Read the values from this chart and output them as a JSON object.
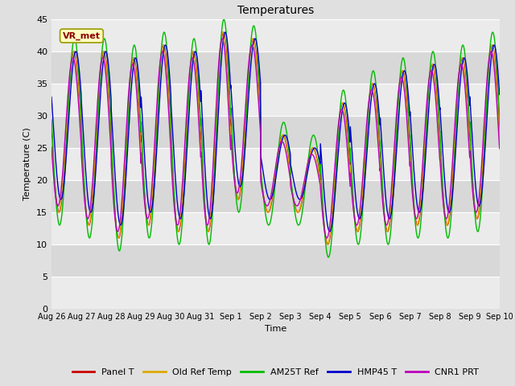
{
  "title": "Temperatures",
  "xlabel": "Time",
  "ylabel": "Temperature (C)",
  "ylim": [
    0,
    45
  ],
  "yticks": [
    0,
    5,
    10,
    15,
    20,
    25,
    30,
    35,
    40,
    45
  ],
  "annotation_text": "VR_met",
  "legend_entries": [
    "Panel T",
    "Old Ref Temp",
    "AM25T Ref",
    "HMP45 T",
    "CNR1 PRT"
  ],
  "line_colors": [
    "#cc0000",
    "#ddaa00",
    "#00bb00",
    "#0000cc",
    "#bb00bb"
  ],
  "bg_color": "#e0e0e0",
  "plot_bg_light": "#ebebeb",
  "plot_bg_dark": "#d8d8d8",
  "num_days": 15,
  "num_points": 3000,
  "day_peaks": [
    40,
    40,
    39,
    41,
    40,
    43,
    42,
    27,
    25,
    32,
    35,
    37,
    38,
    39,
    41
  ],
  "day_mins": [
    15,
    13,
    11,
    13,
    12,
    12,
    17,
    15,
    15,
    10,
    12,
    12,
    13,
    13,
    14
  ],
  "green_peak_extra": 2,
  "green_min_extra": 2,
  "hmp45_phase": -1.5,
  "cnr1_phase": 0.8
}
